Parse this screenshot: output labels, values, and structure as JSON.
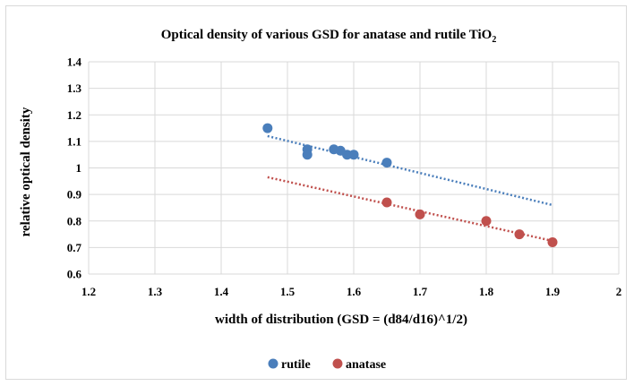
{
  "chart_data": {
    "type": "scatter",
    "title": "Optical density of various GSD for anatase and rutile TiO",
    "title_subscript": "2",
    "xlabel": "width of distribution (GSD = (d84/d16)^1/2)",
    "ylabel": "relative optical density",
    "xlim": [
      1.2,
      2
    ],
    "ylim": [
      0.6,
      1.4
    ],
    "x_ticks": [
      "1.2",
      "1.3",
      "1.4",
      "1.5",
      "1.6",
      "1.7",
      "1.8",
      "1.9",
      "2"
    ],
    "y_ticks": [
      "0.6",
      "0.7",
      "0.8",
      "0.9",
      "1",
      "1.1",
      "1.2",
      "1.3",
      "1.4"
    ],
    "grid": true,
    "legend_position": "bottom",
    "series": [
      {
        "name": "rutile",
        "color": "#4a7ebb",
        "x": [
          1.47,
          1.53,
          1.53,
          1.57,
          1.58,
          1.59,
          1.6,
          1.65
        ],
        "y": [
          1.15,
          1.07,
          1.05,
          1.07,
          1.065,
          1.05,
          1.05,
          1.02
        ],
        "trendline": {
          "type": "linear",
          "x": [
            1.47,
            1.9
          ],
          "y": [
            1.12,
            0.86
          ]
        }
      },
      {
        "name": "anatase",
        "color": "#c0504d",
        "x": [
          1.65,
          1.7,
          1.8,
          1.85,
          1.9
        ],
        "y": [
          0.87,
          0.825,
          0.8,
          0.75,
          0.72
        ],
        "trendline": {
          "type": "linear",
          "x": [
            1.47,
            1.9
          ],
          "y": [
            0.965,
            0.725
          ]
        }
      }
    ]
  }
}
